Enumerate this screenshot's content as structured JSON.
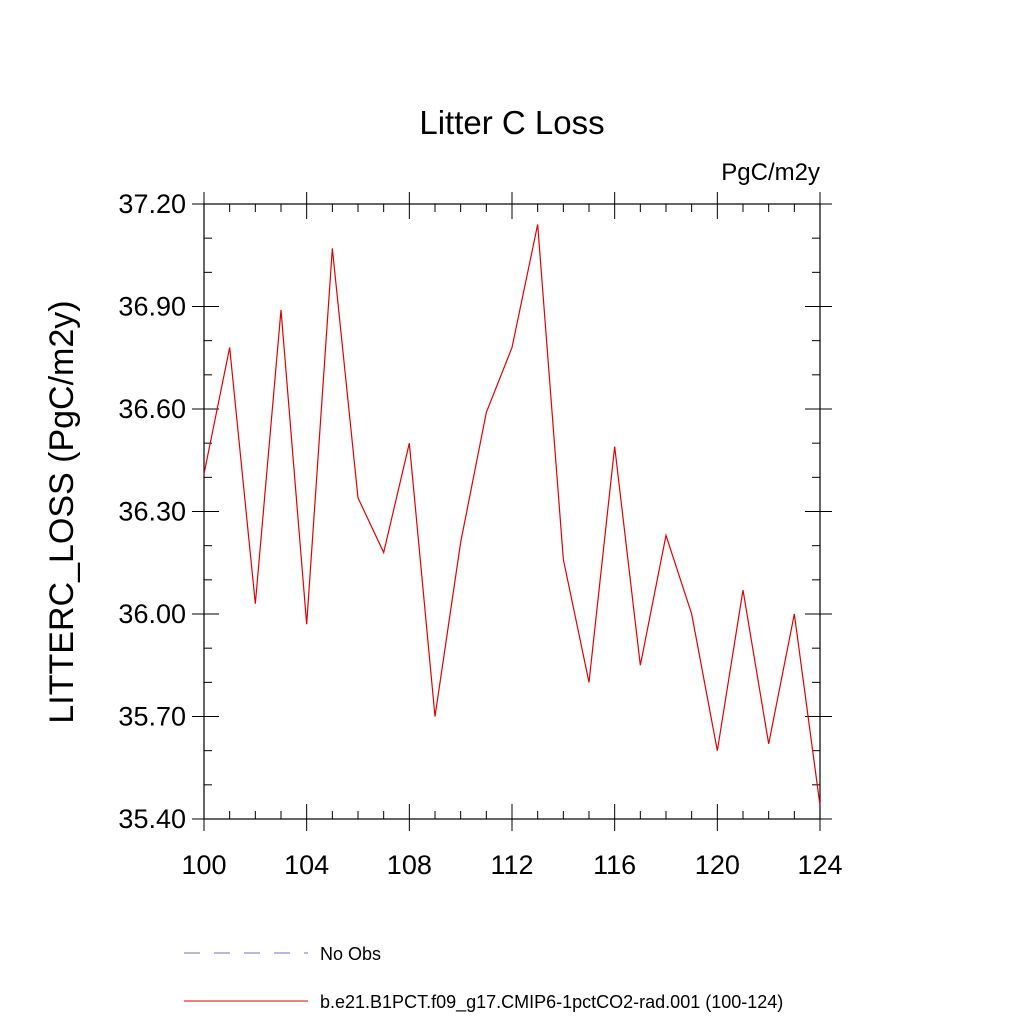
{
  "chart_data": {
    "type": "line",
    "title": "Litter C Loss",
    "units": "PgC/m2y",
    "ylabel": "LITTERC_LOSS  (PgC/m2y)",
    "xlabel": "",
    "xlim": [
      100,
      124
    ],
    "ylim": [
      35.4,
      37.2
    ],
    "x_ticks": [
      100,
      104,
      108,
      112,
      116,
      120,
      124
    ],
    "x_tick_labels": [
      "100",
      "104",
      "108",
      "112",
      "116",
      "120",
      "124"
    ],
    "y_ticks": [
      35.4,
      35.7,
      36.0,
      36.3,
      36.6,
      36.9,
      37.2
    ],
    "y_tick_labels": [
      "35.40",
      "35.70",
      "36.00",
      "36.30",
      "36.60",
      "36.90",
      "37.20"
    ],
    "grid": false,
    "legend_position": "bottom",
    "series": [
      {
        "name": "No Obs",
        "color": "#7a6fc0",
        "style": "dashed",
        "x": [],
        "values": []
      },
      {
        "name": "b.e21.B1PCT.f09_g17.CMIP6-1pctCO2-rad.001 (100-124)",
        "color": "#e00000",
        "style": "solid",
        "x": [
          100,
          101,
          102,
          103,
          104,
          105,
          106,
          107,
          108,
          109,
          110,
          111,
          112,
          113,
          114,
          115,
          116,
          117,
          118,
          119,
          120,
          121,
          122,
          123,
          124
        ],
        "values": [
          36.41,
          36.78,
          36.03,
          36.89,
          35.97,
          37.07,
          36.34,
          36.18,
          36.5,
          35.7,
          36.21,
          36.59,
          36.78,
          37.14,
          36.16,
          35.8,
          36.49,
          35.85,
          36.23,
          36.0,
          35.6,
          36.07,
          35.62,
          36.0,
          35.44
        ]
      }
    ]
  }
}
